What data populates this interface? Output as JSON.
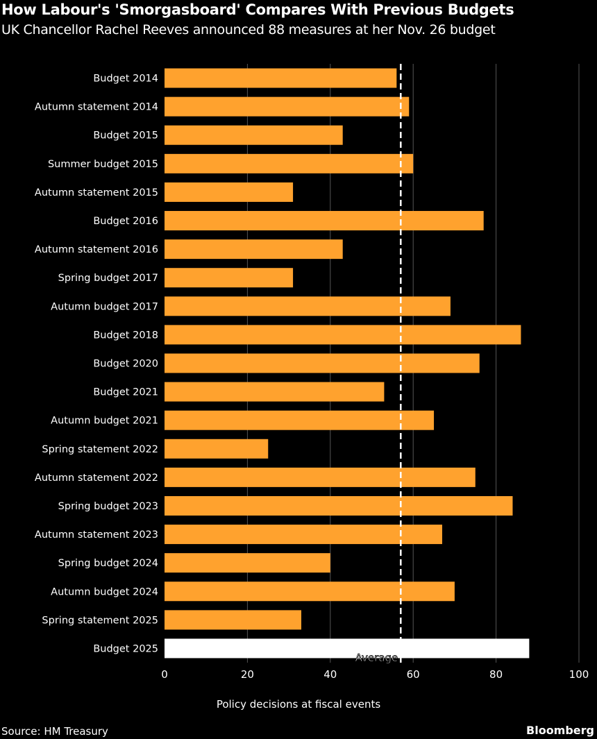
{
  "chart_data": {
    "type": "bar",
    "orientation": "horizontal",
    "title": "How Labour's 'Smorgasboard' Compares With Previous Budgets",
    "subtitle": "UK Chancellor Rachel Reeves announced 88 measures at her Nov. 26 budget",
    "xlabel": "Policy decisions at fiscal events",
    "ylabel": "",
    "xlim": [
      0,
      100
    ],
    "xticks": [
      0,
      20,
      40,
      60,
      80,
      100
    ],
    "grid": true,
    "categories": [
      "Budget 2014",
      "Autumn statement 2014",
      "Budget 2015",
      "Summer budget 2015",
      "Autumn statement 2015",
      "Budget 2016",
      "Autumn statement 2016",
      "Spring budget 2017",
      "Autumn budget 2017",
      "Budget 2018",
      "Budget 2020",
      "Budget 2021",
      "Autumn budget 2021",
      "Spring statement 2022",
      "Autumn statement 2022",
      "Spring budget 2023",
      "Autumn statement 2023",
      "Spring budget 2024",
      "Autumn budget 2024",
      "Spring statement 2025",
      "Budget 2025"
    ],
    "values": [
      56,
      59,
      43,
      60,
      31,
      77,
      43,
      31,
      69,
      86,
      76,
      53,
      65,
      25,
      75,
      84,
      67,
      40,
      70,
      33,
      88
    ],
    "highlight_category": "Budget 2025",
    "colors": {
      "bar": "#FFA22E",
      "highlight": "#FFFFFF",
      "background": "#000000",
      "grid": "#555555"
    },
    "average": {
      "label": "Average",
      "value": 57
    }
  },
  "footer": {
    "source": "Source: HM Treasury",
    "brand": "Bloomberg"
  }
}
